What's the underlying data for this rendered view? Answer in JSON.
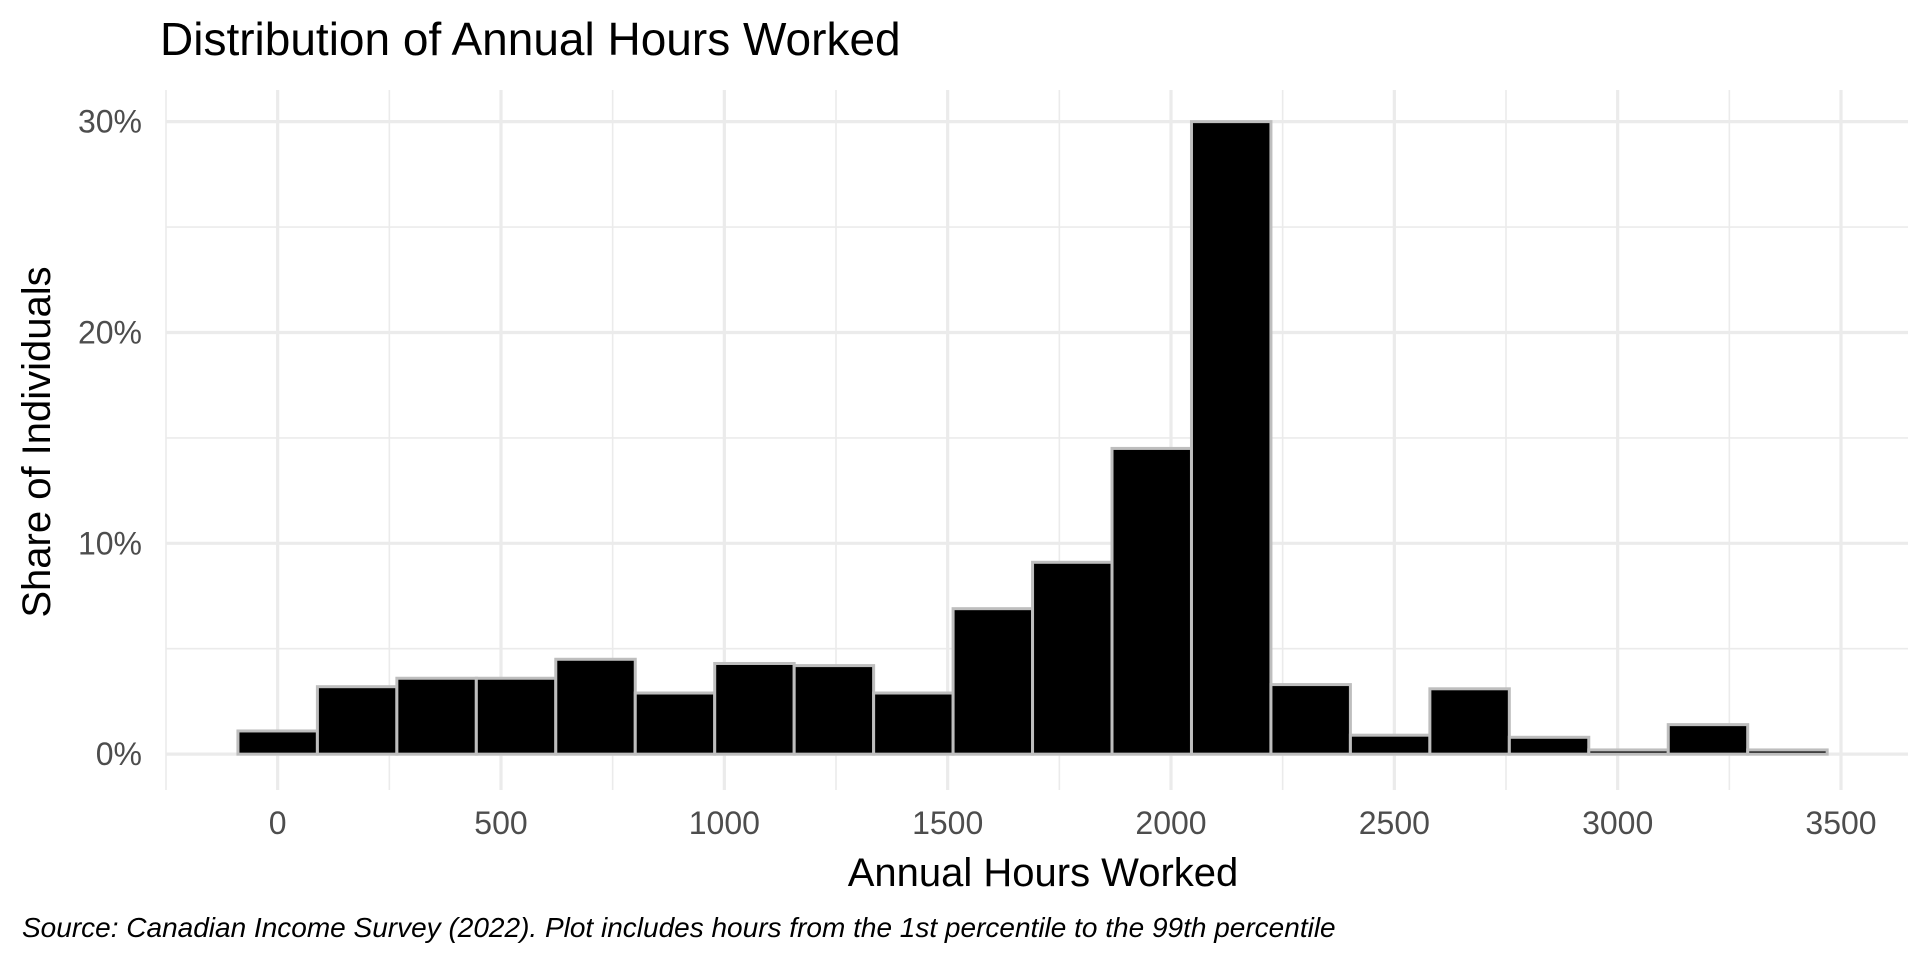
{
  "chart_data": {
    "type": "bar",
    "title": "Distribution of Annual Hours Worked",
    "xlabel": "Annual Hours Worked",
    "ylabel": "Share of Individuals",
    "caption": "Source: Canadian Income Survey (2022). Plot includes hours from the 1st percentile to the 99th percentile",
    "bin_width": 177.9,
    "x": [
      0,
      177.9,
      355.8,
      533.7,
      711.6,
      889.5,
      1067.4,
      1245.3,
      1423.2,
      1601.1,
      1779.0,
      1956.9,
      2134.8,
      2312.7,
      2490.6,
      2668.5,
      2846.4,
      3024.3,
      3202.2,
      3380.1
    ],
    "values": [
      1.1,
      3.2,
      3.6,
      3.6,
      4.5,
      2.9,
      4.3,
      4.2,
      2.9,
      6.9,
      9.1,
      14.5,
      30.0,
      3.3,
      0.9,
      3.1,
      0.8,
      0.2,
      1.4,
      0.2
    ],
    "xlim": [
      -250,
      3650
    ],
    "ylim": [
      -1.7,
      31.5
    ],
    "x_ticks": [
      0,
      500,
      1000,
      1500,
      2000,
      2500,
      3000,
      3500
    ],
    "x_tick_labels": [
      "0",
      "500",
      "1000",
      "1500",
      "2000",
      "2500",
      "3000",
      "3500"
    ],
    "y_ticks": [
      0,
      10,
      20,
      30
    ],
    "y_tick_labels": [
      "0%",
      "10%",
      "20%",
      "30%"
    ],
    "grid": true,
    "bar_fill": "#000000",
    "bar_outline": "#bebebe",
    "grid_color": "#ebebeb"
  }
}
